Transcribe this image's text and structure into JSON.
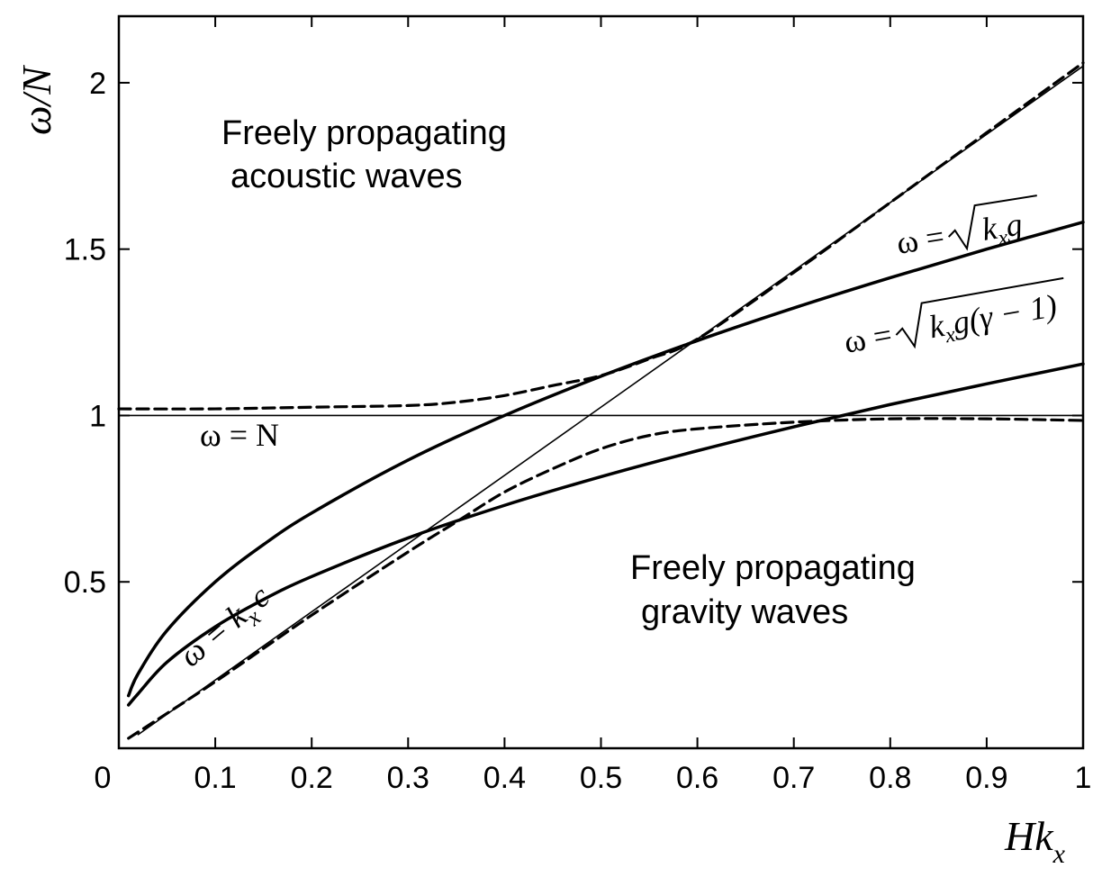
{
  "chart_data": {
    "type": "line",
    "xlabel": "Hk",
    "xlabel_sub": "x",
    "ylabel": "ω/N",
    "xlim": [
      0,
      1
    ],
    "ylim": [
      0,
      2.2
    ],
    "x_ticks": [
      "0",
      "0.1",
      "0.2",
      "0.3",
      "0.4",
      "0.5",
      "0.6",
      "0.7",
      "0.8",
      "0.9",
      "1"
    ],
    "y_ticks": [
      "0.5",
      "1",
      "1.5",
      "2"
    ],
    "y_tick_values": [
      0.5,
      1,
      1.5,
      2
    ],
    "grid": false,
    "annotations": {
      "acoustic_line1": "Freely propagating",
      "acoustic_line2": "acoustic waves",
      "gravity_line1": "Freely propagating",
      "gravity_line2": "gravity waves",
      "omega_N": "ω = N",
      "omega_kxc": "ω = k",
      "omega_kxc_sub": "x",
      "omega_kxc_tail": "c",
      "omega_sqrt_kxg_lhs": "ω =",
      "omega_sqrt_kxg_k": "k",
      "omega_sqrt_kxg_sub": "x",
      "omega_sqrt_kxg_g": "g",
      "omega_sqrt_gamma_lhs": "ω =",
      "omega_sqrt_gamma_k": "k",
      "omega_sqrt_gamma_sub": "x",
      "omega_sqrt_gamma_rest": "g(γ − 1)"
    },
    "series": [
      {
        "style": "thin-solid",
        "x": [
          0,
          1
        ],
        "y": [
          1,
          1
        ]
      },
      {
        "style": "thin-solid",
        "x": [
          0.02,
          1
        ],
        "y": [
          0.041,
          2.05
        ]
      },
      {
        "style": "thick-solid",
        "x": [
          0.01,
          0.02,
          0.05,
          0.1,
          0.15,
          0.2,
          0.3,
          0.4,
          0.5,
          0.6,
          0.7,
          0.8,
          0.9,
          1.0
        ],
        "y": [
          0.158,
          0.224,
          0.354,
          0.5,
          0.612,
          0.707,
          0.866,
          1.0,
          1.118,
          1.225,
          1.323,
          1.414,
          1.5,
          1.581
        ]
      },
      {
        "style": "thick-solid",
        "x": [
          0.01,
          0.02,
          0.05,
          0.1,
          0.15,
          0.2,
          0.3,
          0.4,
          0.5,
          0.6,
          0.7,
          0.8,
          0.9,
          1.0
        ],
        "y": [
          0.13,
          0.164,
          0.259,
          0.365,
          0.447,
          0.516,
          0.632,
          0.73,
          0.816,
          0.894,
          0.966,
          1.033,
          1.095,
          1.155
        ]
      },
      {
        "style": "dashed",
        "x": [
          0,
          0.1,
          0.2,
          0.3,
          0.35,
          0.4,
          0.45,
          0.5,
          0.55,
          0.6,
          0.7,
          0.8,
          0.9,
          1.0
        ],
        "y": [
          1.02,
          1.02,
          1.025,
          1.03,
          1.04,
          1.06,
          1.09,
          1.12,
          1.17,
          1.23,
          1.43,
          1.64,
          1.85,
          2.06
        ]
      },
      {
        "style": "dashed",
        "x": [
          0.01,
          0.1,
          0.2,
          0.3,
          0.35,
          0.4,
          0.45,
          0.5,
          0.55,
          0.6,
          0.7,
          0.8,
          0.9,
          1.0
        ],
        "y": [
          0.03,
          0.2,
          0.4,
          0.59,
          0.68,
          0.77,
          0.84,
          0.9,
          0.94,
          0.96,
          0.98,
          0.99,
          0.99,
          0.985
        ]
      }
    ]
  }
}
